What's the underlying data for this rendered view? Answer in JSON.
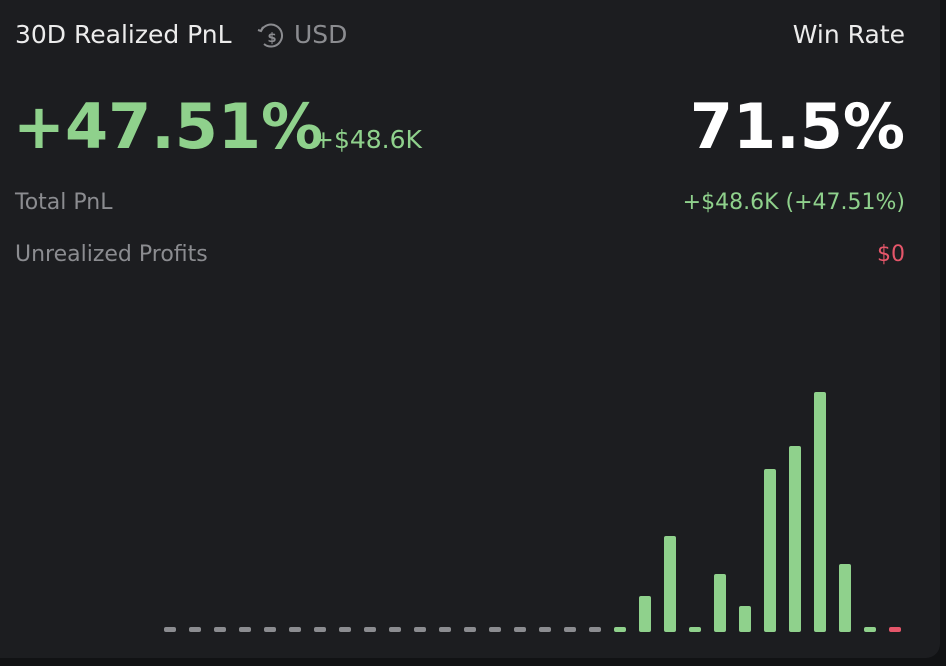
{
  "header": {
    "title": "30D Realized PnL",
    "currency": "USD",
    "win_rate_label": "Win Rate"
  },
  "summary": {
    "pnl_percent": "+47.51%",
    "pnl_amount": "+$48.6K",
    "win_rate": "71.5%"
  },
  "rows": [
    {
      "label": "Total PnL",
      "value": "+$48.6K (+47.51%)",
      "tone": "positive"
    },
    {
      "label": "Unrealized Profits",
      "value": "$0",
      "tone": "negative"
    }
  ],
  "chart_data": {
    "type": "bar",
    "values": [
      0,
      0,
      0,
      0,
      0,
      0,
      0,
      0,
      0,
      0,
      0,
      0,
      0,
      0,
      0,
      0,
      0,
      0,
      2,
      36,
      96,
      2,
      58,
      26,
      163,
      186,
      240,
      68,
      2,
      -2
    ],
    "positive_color": "#8fd18c",
    "negative_color": "#e5566a",
    "zero_color": "#8b8c90"
  }
}
